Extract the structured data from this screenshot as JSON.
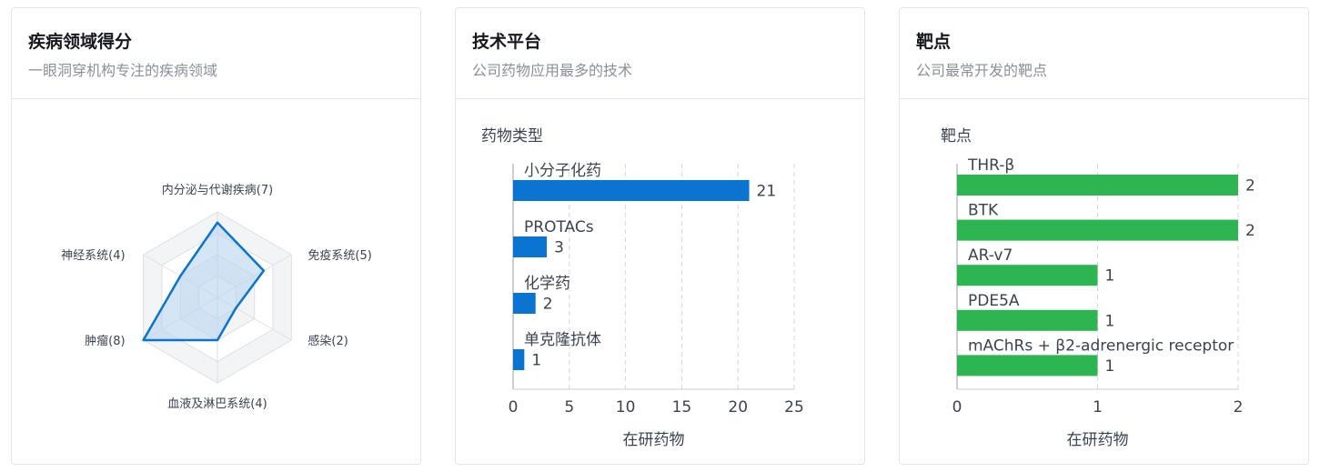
{
  "cards": [
    {
      "title": "疾病领域得分",
      "subtitle": "一眼洞穿机构专注的疾病领域"
    },
    {
      "title": "技术平台",
      "subtitle": "公司药物应用最多的技术"
    },
    {
      "title": "靶点",
      "subtitle": "公司最常开发的靶点"
    }
  ],
  "colors": {
    "radar_line": "#0a74d0",
    "radar_fill": "#b8d3f0",
    "tech_bar": "#0a74d0",
    "target_bar": "#2db552"
  },
  "chart_data": [
    {
      "type": "radar",
      "labels": [
        "内分泌与代谢疾病(7)",
        "免疫系统(5)",
        "感染(2)",
        "血液及淋巴系统(4)",
        "肿瘤(8)",
        "神经系统(4)"
      ],
      "categories": [
        "内分泌与代谢疾病",
        "免疫系统",
        "感染",
        "血液及淋巴系统",
        "肿瘤",
        "神经系统"
      ],
      "values": [
        7,
        5,
        2,
        4,
        8,
        4
      ],
      "max": 8
    },
    {
      "type": "bar",
      "orientation": "horizontal",
      "title": "药物类型",
      "xlabel": "在研药物",
      "categories": [
        "小分子化药",
        "PROTACs",
        "化学药",
        "单克隆抗体"
      ],
      "values": [
        21,
        3,
        2,
        1
      ],
      "xlim": [
        0,
        25
      ],
      "xticks": [
        0,
        5,
        10,
        15,
        20,
        25
      ],
      "grid": true
    },
    {
      "type": "bar",
      "orientation": "horizontal",
      "title": "靶点",
      "xlabel": "在研药物",
      "categories": [
        "THR-β",
        "BTK",
        "AR-v7",
        "PDE5A",
        "mAChRs + β2-adrenergic receptor"
      ],
      "values": [
        2,
        2,
        1,
        1,
        1
      ],
      "xlim": [
        0,
        2
      ],
      "xticks": [
        0,
        1,
        2
      ],
      "grid": true
    }
  ]
}
